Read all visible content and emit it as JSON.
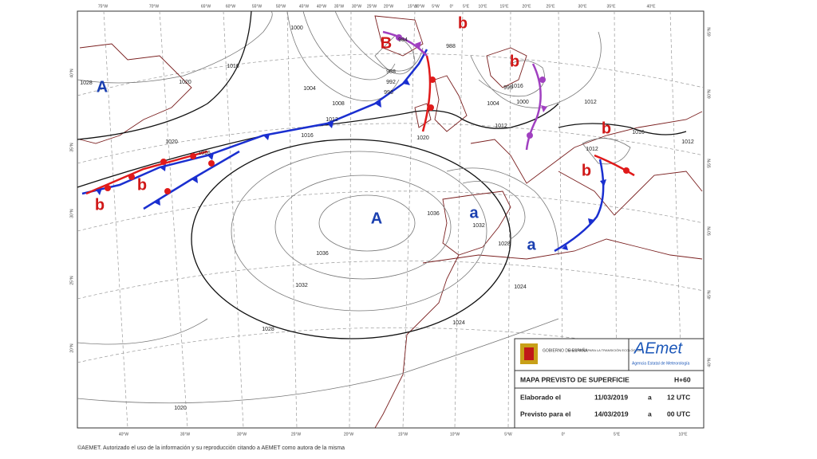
{
  "map": {
    "centers": [
      "A",
      "B",
      "b",
      "b",
      "b",
      "b",
      "b",
      "b",
      "A",
      "a",
      "a"
    ],
    "isobar_labels": [
      "1028",
      "1016",
      "1020",
      "1000",
      "1004",
      "1008",
      "988",
      "992",
      "996",
      "984",
      "988",
      "1012",
      "1016",
      "1016",
      "1020",
      "1016",
      "996",
      "1000",
      "1004",
      "1012",
      "1012",
      "1016",
      "1012",
      "1012",
      "1020",
      "1036",
      "1032",
      "1028",
      "1024",
      "1024",
      "1028",
      "1032",
      "1036",
      "1020"
    ],
    "lon_top": [
      "75°W",
      "70°W",
      "65°W",
      "60°W",
      "55°W",
      "50°W",
      "45°W",
      "40°W",
      "35°W",
      "30°W",
      "25°W",
      "20°W",
      "15°W",
      "10°W",
      "5°W",
      "0°",
      "5°E",
      "10°E",
      "15°E",
      "20°E",
      "25°E",
      "30°E",
      "35°E",
      "40°E"
    ],
    "lon_bottom": [
      "40°W",
      "35°W",
      "30°W",
      "25°W",
      "20°W",
      "15°W",
      "10°W",
      "5°W",
      "0°",
      "5°E",
      "10°E"
    ],
    "lat_left": [
      "40°N",
      "35°N",
      "30°N",
      "25°N",
      "20°N"
    ],
    "lat_right": [
      "65°N",
      "60°N",
      "55°N",
      "50°N",
      "45°N",
      "40°N"
    ]
  },
  "legend": {
    "government": "GOBIERNO DE ESPAÑA",
    "ministry": "MINISTERIO PARA LA TRANSICIÓN ECOLÓGICA",
    "logo": "AEmet",
    "agency": "Agencia Estatal de Meteorología",
    "title": "MAPA PREVISTO DE SUPERFICIE",
    "range": "H+60",
    "made_label": "Elaborado el",
    "made_date": "11/03/2019",
    "made_at": "a",
    "made_time": "12 UTC",
    "valid_label": "Previsto para el",
    "valid_date": "14/03/2019",
    "valid_at": "a",
    "valid_time": "00 UTC"
  },
  "footer": "©AEMET. Autorizado el uso de la información y su reproducción citando a AEMET como autora de la misma"
}
